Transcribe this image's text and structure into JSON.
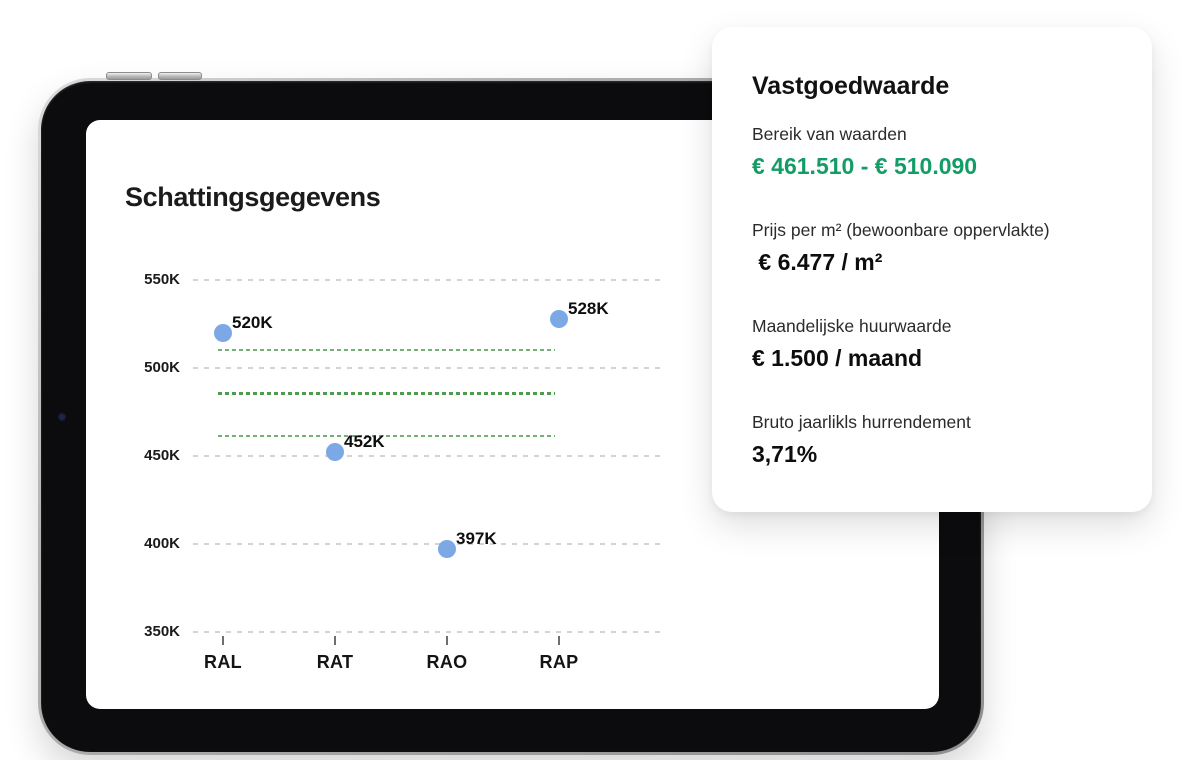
{
  "chart": {
    "title": "Schattingsgegevens",
    "y_tick_labels": [
      "550K",
      "500K",
      "450K",
      "400K",
      "350K"
    ],
    "y_tick_values": [
      550,
      500,
      450,
      400,
      350
    ],
    "categories": [
      "RAL",
      "RAT",
      "RAO",
      "RAP"
    ],
    "points": [
      {
        "category": "RAL",
        "value": 520,
        "label": "520K"
      },
      {
        "category": "RAT",
        "value": 452,
        "label": "452K"
      },
      {
        "category": "RAO",
        "value": 397,
        "label": "397K"
      },
      {
        "category": "RAP",
        "value": 528,
        "label": "528K"
      }
    ],
    "range_lines": {
      "upper": 510.09,
      "mid": 485.8,
      "lower": 461.51
    },
    "colors": {
      "point": "#7CA9E6",
      "grid": "#D3D3D3",
      "range_thin": "#72B174",
      "range_mid": "#4D9B4D"
    }
  },
  "chart_data": {
    "type": "scatter",
    "title": "Schattingsgegevens",
    "categories": [
      "RAL",
      "RAT",
      "RAO",
      "RAP"
    ],
    "values": [
      520000,
      452000,
      397000,
      528000
    ],
    "point_labels": [
      "520K",
      "452K",
      "397K",
      "528K"
    ],
    "xlabel": "",
    "ylabel": "",
    "ylim": [
      350000,
      550000
    ],
    "y_tick_labels": [
      "350K",
      "400K",
      "450K",
      "500K",
      "550K"
    ],
    "grid": "horizontal dashed",
    "legend": "none",
    "reference_lines": [
      {
        "value": 510090,
        "style": "dashed-thin",
        "color": "#72B174",
        "meaning": "upper bound of value range"
      },
      {
        "value": 485800,
        "style": "dotted-bold",
        "color": "#4D9B4D",
        "meaning": "estimated property value"
      },
      {
        "value": 461510,
        "style": "dashed-thin",
        "color": "#72B174",
        "meaning": "lower bound of value range"
      }
    ]
  },
  "card": {
    "title": "Vastgoedwaarde",
    "accent_green": "#139C66",
    "sections": [
      {
        "label": "Bereik van waarden",
        "value": "€ 461.510 - € 510.090",
        "highlight": true
      },
      {
        "label": "Prijs per m² (bewoonbare oppervlakte)",
        "value": " € 6.477 / m²",
        "highlight": false
      },
      {
        "label": "Maandelijske huurwaarde",
        "value": "€ 1.500 / maand",
        "highlight": false
      },
      {
        "label": "Bruto jaarlikls hurrendement",
        "value": "3,71%",
        "highlight": false
      }
    ]
  }
}
